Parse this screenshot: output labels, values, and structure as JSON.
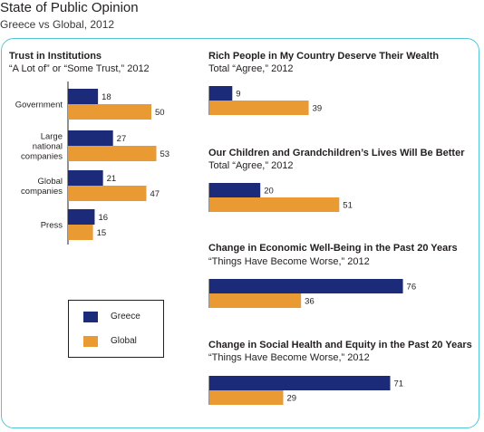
{
  "title": "State of Public Opinion",
  "subtitle": "Greece vs Global, 2012",
  "colors": {
    "greece": "#1c2a7a",
    "global": "#e99a33",
    "frame": "#53c6d8"
  },
  "legend": [
    {
      "name": "Greece",
      "color": "#1c2a7a"
    },
    {
      "name": "Global",
      "color": "#e99a33"
    }
  ],
  "chart_data": [
    {
      "type": "bar",
      "orientation": "horizontal",
      "title": "Trust in Institutions",
      "subtitle": "“A Lot of” or “Some Trust,” 2012",
      "categories": [
        {
          "label": [
            "Government"
          ]
        },
        {
          "label": [
            "Large",
            "national",
            "companies"
          ]
        },
        {
          "label": [
            "Global",
            "companies"
          ]
        },
        {
          "label": [
            "Press"
          ]
        }
      ],
      "series": [
        {
          "name": "Greece",
          "values": [
            18,
            27,
            21,
            16
          ]
        },
        {
          "name": "Global",
          "values": [
            50,
            53,
            47,
            15
          ]
        }
      ]
    },
    {
      "type": "bar",
      "orientation": "horizontal",
      "title": "Rich People in My Country Deserve Their Wealth",
      "subtitle": "Total “Agree,” 2012",
      "series": [
        {
          "name": "Greece",
          "values": [
            9
          ]
        },
        {
          "name": "Global",
          "values": [
            39
          ]
        }
      ]
    },
    {
      "type": "bar",
      "orientation": "horizontal",
      "title": "Our Children and Grandchildren’s Lives Will Be Better",
      "subtitle": "Total “Agree,” 2012",
      "series": [
        {
          "name": "Greece",
          "values": [
            20
          ]
        },
        {
          "name": "Global",
          "values": [
            51
          ]
        }
      ]
    },
    {
      "type": "bar",
      "orientation": "horizontal",
      "title": "Change in Economic Well-Being in the Past 20 Years",
      "subtitle": "“Things Have Become Worse,” 2012",
      "series": [
        {
          "name": "Greece",
          "values": [
            76
          ]
        },
        {
          "name": "Global",
          "values": [
            36
          ]
        }
      ]
    },
    {
      "type": "bar",
      "orientation": "horizontal",
      "title": "Change in Social Health and Equity in the Past 20 Years",
      "subtitle": "“Things Have Become Worse,” 2012",
      "series": [
        {
          "name": "Greece",
          "values": [
            71
          ]
        },
        {
          "name": "Global",
          "values": [
            29
          ]
        }
      ]
    }
  ]
}
